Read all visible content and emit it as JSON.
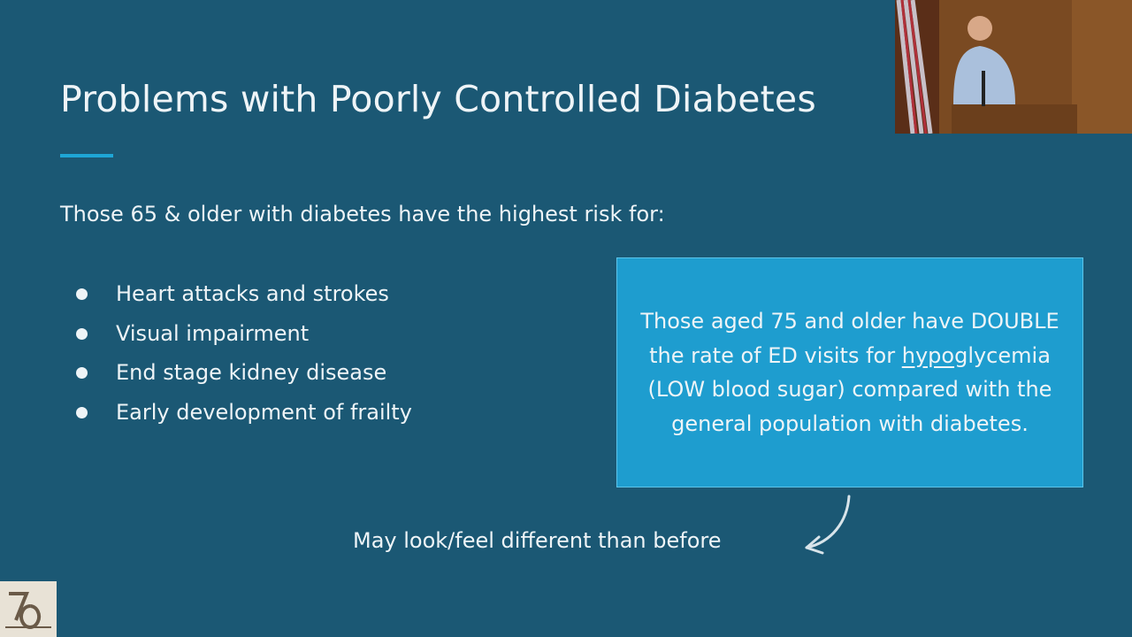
{
  "slide": {
    "title": "Problems with Poorly Controlled Diabetes",
    "intro": "Those 65 & older with diabetes have the highest risk for:",
    "bullets": [
      "Heart attacks and strokes",
      "Visual impairment",
      "End stage kidney disease",
      "Early development of frailty"
    ],
    "callout": {
      "before": "Those aged 75 and older have DOUBLE the rate of ED visits for ",
      "underlined": "hypo",
      "after": "glycemia (LOW blood sugar) compared with the general population with diabetes."
    },
    "note": "May look/feel different than before"
  }
}
